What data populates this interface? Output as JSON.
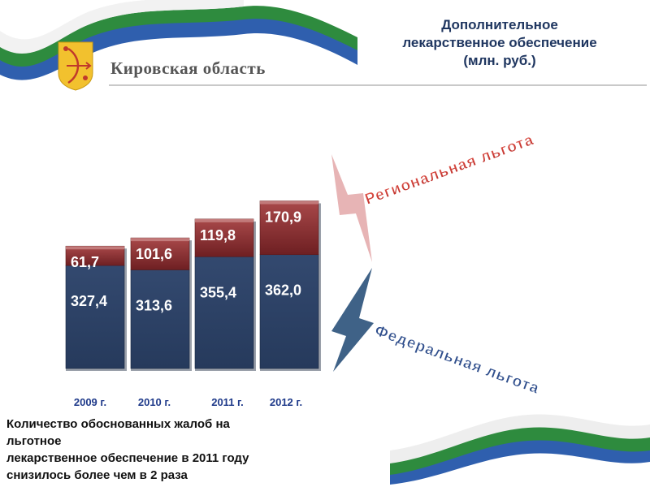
{
  "header": {
    "region_name": "Кировская область",
    "title_lines": [
      "Дополнительное",
      "лекарственное обеспечение",
      "(млн. руб.)"
    ]
  },
  "chart_data": {
    "type": "bar",
    "stacked": true,
    "categories": [
      "2009 г.",
      "2010 г.",
      "2011 г.",
      "2012 г."
    ],
    "series": [
      {
        "name": "Федеральная льгота",
        "values": [
          327.4,
          313.6,
          355.4,
          362.0
        ],
        "labels": [
          "327,4",
          "313,6",
          "355,4",
          "362,0"
        ],
        "color": "#2b3f63"
      },
      {
        "name": "Региональная льгота",
        "values": [
          61.7,
          101.6,
          119.8,
          170.9
        ],
        "labels": [
          "61,7",
          "101,6",
          "119,8",
          "170,9"
        ],
        "color": "#8e2f31"
      }
    ],
    "legend_placement": "right",
    "grid": false
  },
  "legend": {
    "regional_label": "Региональная льгота",
    "federal_label": "Федеральная льгота",
    "regional_color": "#c0392b",
    "federal_color": "#1f3660"
  },
  "footnote_lines": [
    "Количество обоснованных жалоб на",
    "льготное",
    "лекарственное обеспечение в 2011 году",
    "снизилось более чем в 2 раза"
  ],
  "colors": {
    "ribbon_green": "#2e8b3e",
    "ribbon_blue": "#2f5fae",
    "title": "#1f3660",
    "tick_label": "#1f3a8a"
  }
}
